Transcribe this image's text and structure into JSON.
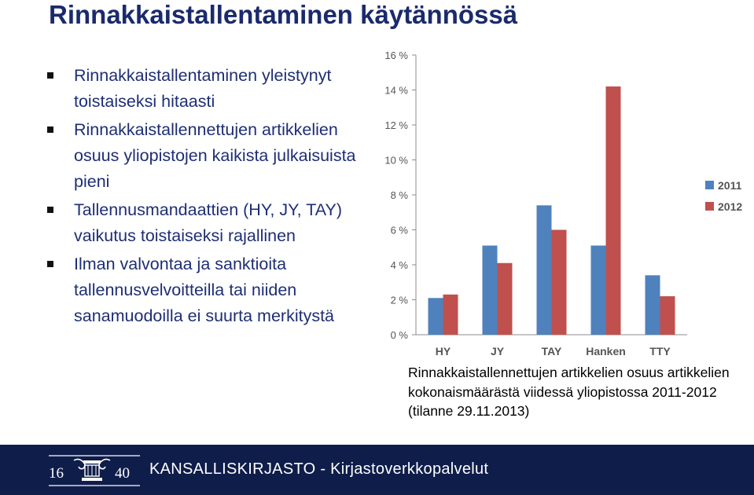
{
  "slide": {
    "title": "Rinnakkaistallentaminen käytännössä",
    "bullets": [
      "Rinnakkaistallentaminen yleistynyt toistaiseksi hitaasti",
      "Rinnakkaistallennettujen artikkelien osuus yliopistojen kaikista julkaisuista pieni",
      "Tallennusmandaattien (HY, JY, TAY) vaikutus toistaiseksi rajallinen",
      "Ilman valvontaa ja sanktioita tallennusvelvoitteilla tai niiden sanamuodoilla ei suurta merkitystä"
    ],
    "caption": "Rinnakkaistallennettujen artikkelien osuus artikkelien kokonaismäärästä viidessä yliopistossa 2011-2012 (tilanne 29.11.2013)"
  },
  "footer": {
    "logo_left": "16",
    "logo_right": "40",
    "text": "KANSALLISKIRJASTO - Kirjastoverkkopalvelut",
    "background": "#0f1d4a"
  },
  "chart_data": {
    "type": "bar",
    "categories": [
      "HY",
      "JY",
      "TAY",
      "Hanken",
      "TTY"
    ],
    "series": [
      {
        "name": "2011",
        "values": [
          2.1,
          5.1,
          7.4,
          5.1,
          3.4
        ],
        "color": "#4f81bd"
      },
      {
        "name": "2012",
        "values": [
          2.3,
          4.1,
          6.0,
          14.2,
          2.2
        ],
        "color": "#c0504d"
      }
    ],
    "yticks": [
      "0 %",
      "2 %",
      "4 %",
      "6 %",
      "8 %",
      "10 %",
      "12 %",
      "14 %",
      "16 %"
    ],
    "ylim": [
      0,
      16
    ],
    "grid": false,
    "legend": "right"
  }
}
